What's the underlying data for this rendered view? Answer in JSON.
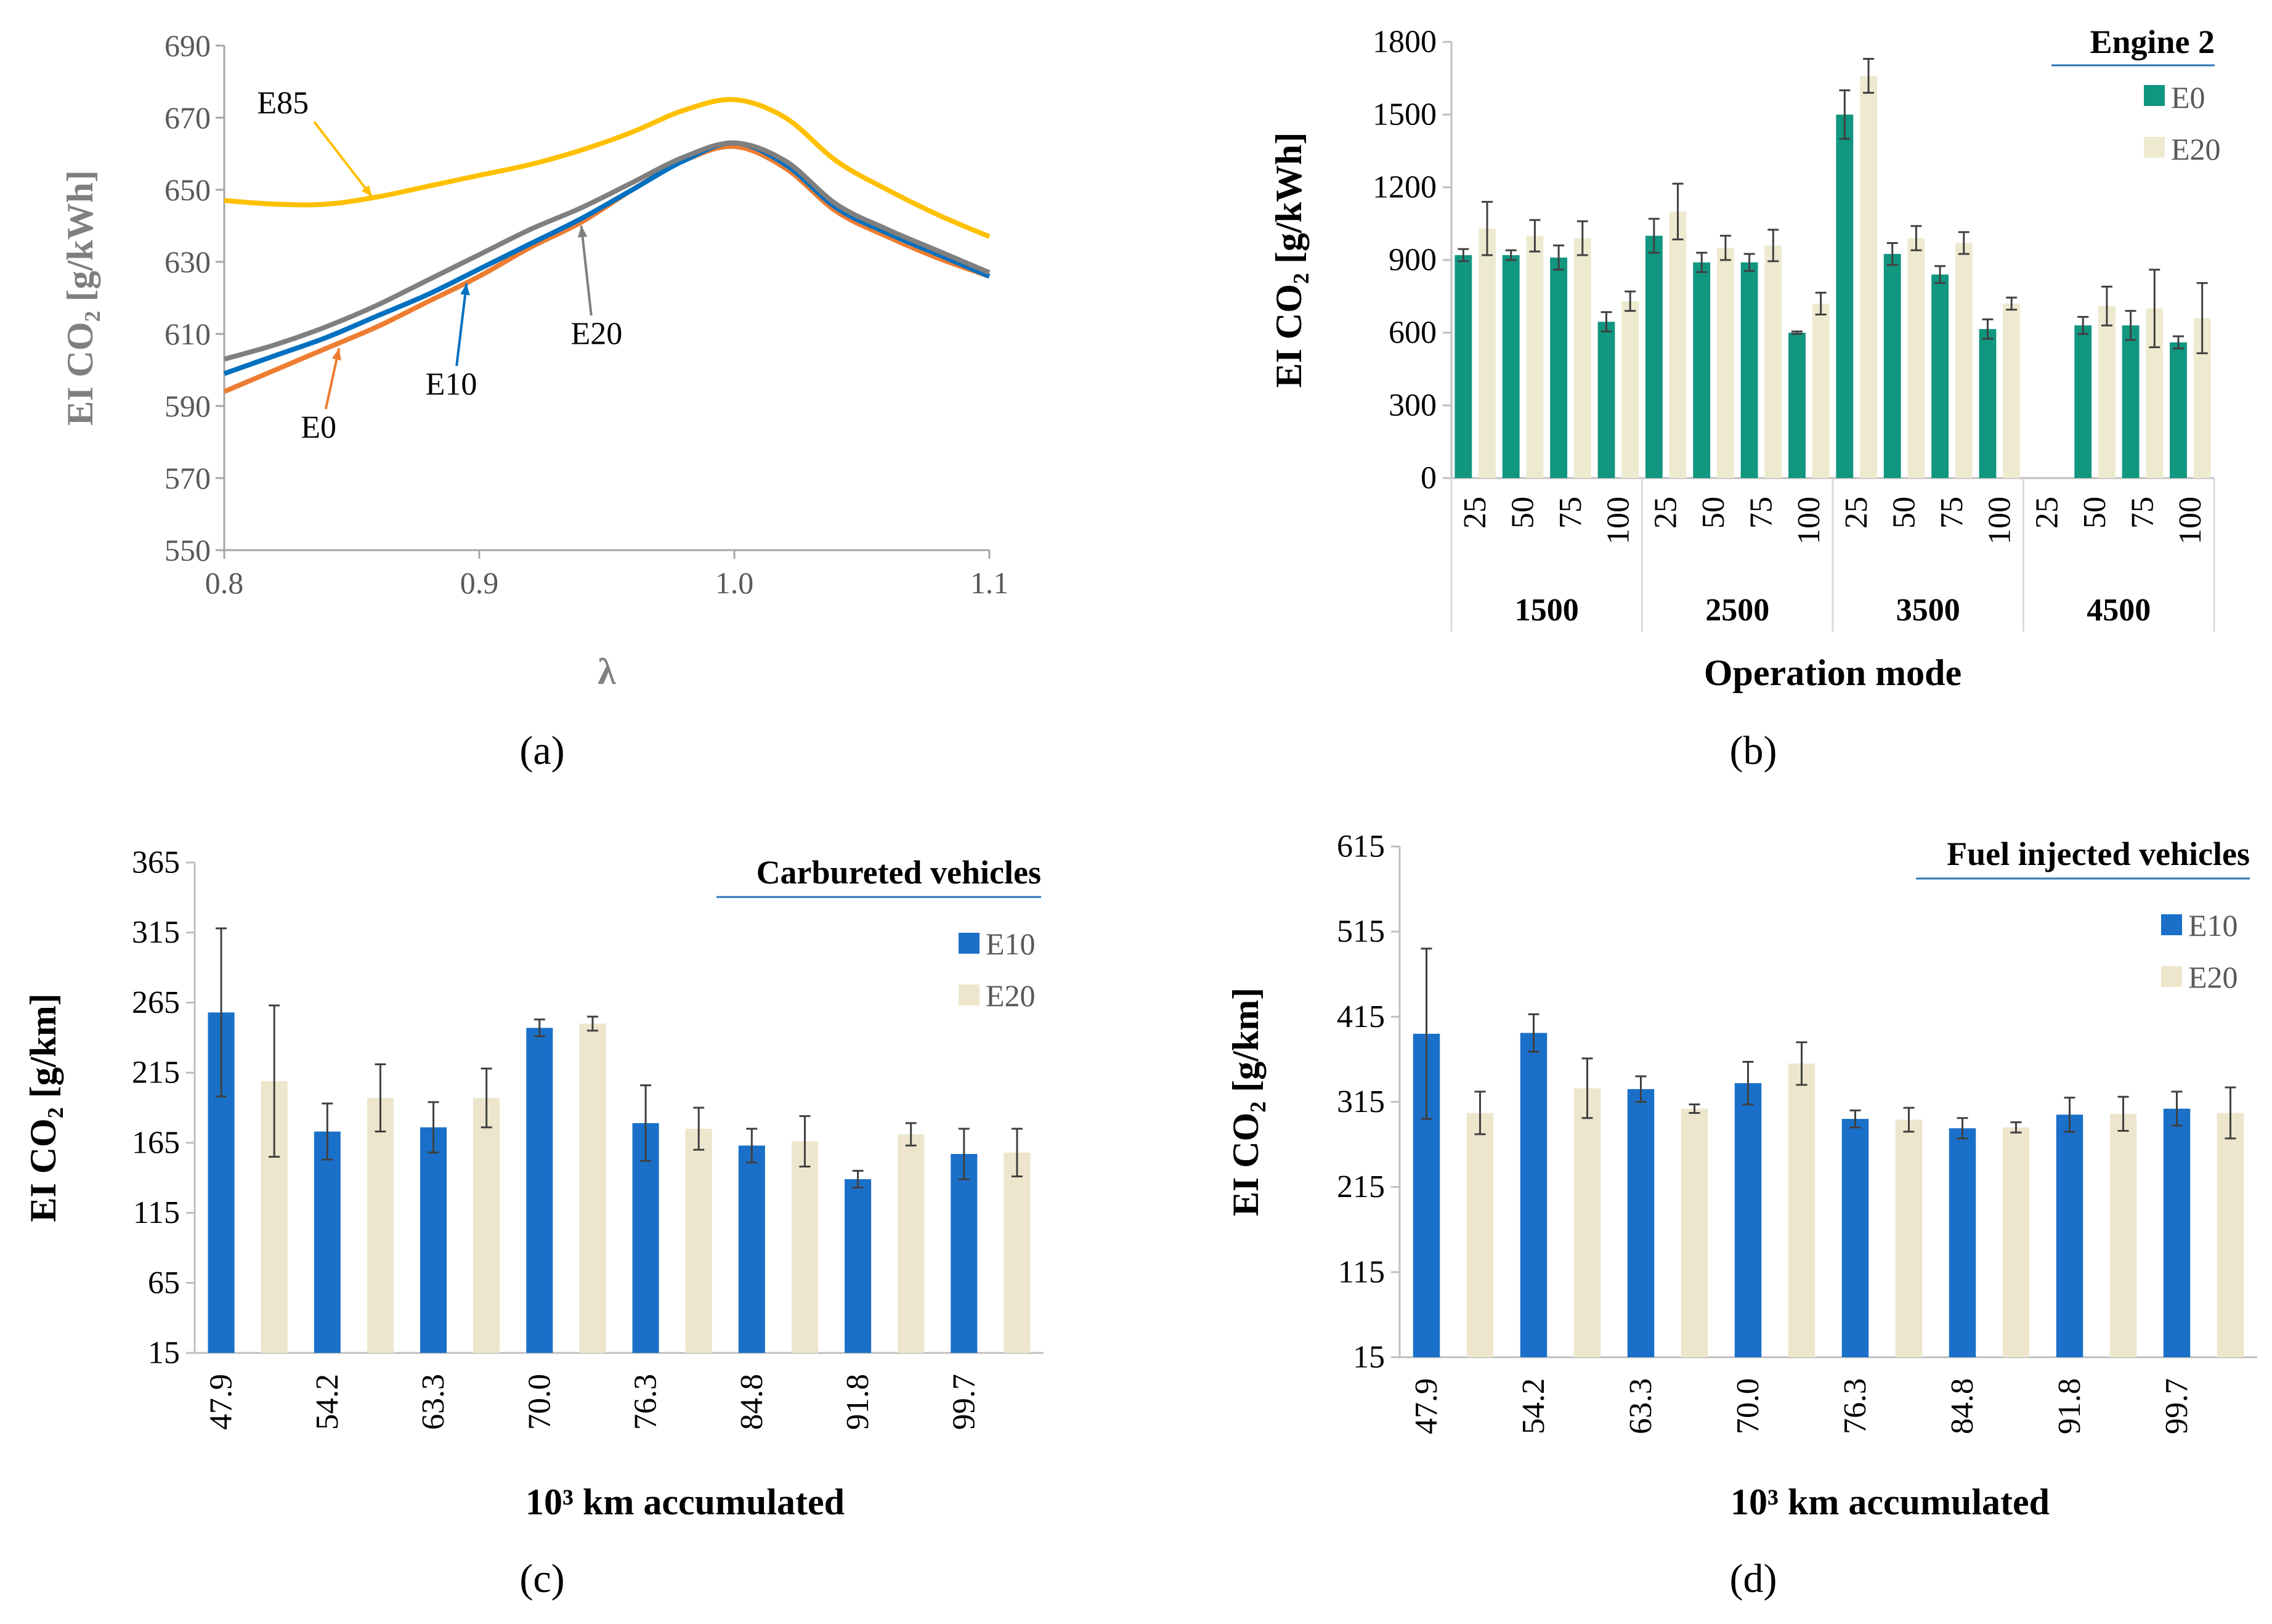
{
  "chart_data": [
    {
      "id": "a",
      "type": "line",
      "caption": "(a)",
      "title": "",
      "xlabel": "λ",
      "ylabel": "EI CO₂ [g/kWh]",
      "xlim": [
        0.8,
        1.1
      ],
      "ylim": [
        550,
        690
      ],
      "x_ticks": [
        "0.8",
        "0.9",
        "1.0",
        "1.1"
      ],
      "y_ticks": [
        "550",
        "570",
        "590",
        "610",
        "630",
        "650",
        "670",
        "690"
      ],
      "x": [
        0.8,
        0.82,
        0.84,
        0.86,
        0.88,
        0.9,
        0.92,
        0.94,
        0.96,
        0.98,
        1.0,
        1.02,
        1.04,
        1.06,
        1.08,
        1.1
      ],
      "series": [
        {
          "name": "E0",
          "label": "E0",
          "color": "#ed7d31",
          "values": [
            594,
            600,
            606,
            612,
            619,
            626,
            634,
            641,
            650,
            658,
            662,
            656,
            644,
            637,
            631,
            626
          ]
        },
        {
          "name": "E10",
          "label": "E10",
          "color": "#0070c0",
          "values": [
            599,
            604,
            609,
            615,
            621,
            628,
            635,
            642,
            650,
            658,
            663,
            657,
            645,
            638,
            632,
            626
          ]
        },
        {
          "name": "E20",
          "label": "E20",
          "color": "#7f7f7f",
          "values": [
            603,
            607,
            612,
            618,
            625,
            632,
            639,
            645,
            652,
            659,
            663,
            658,
            646,
            639,
            633,
            627
          ]
        },
        {
          "name": "E85",
          "label": "E85",
          "color": "#ffc000",
          "values": [
            647,
            646,
            646,
            648,
            651,
            654,
            657,
            661,
            666,
            672,
            675,
            670,
            658,
            650,
            643,
            637
          ]
        }
      ]
    },
    {
      "id": "b",
      "type": "bar",
      "caption": "(b)",
      "title": "Engine 2",
      "xlabel": "Operation mode",
      "ylabel": "EI CO₂ [g/kWh]",
      "ylim": [
        0,
        1800
      ],
      "y_ticks": [
        "0",
        "300",
        "600",
        "900",
        "1200",
        "1500",
        "1800"
      ],
      "groups": [
        "1500",
        "2500",
        "3500",
        "4500"
      ],
      "categories": [
        "25",
        "50",
        "75",
        "100",
        "25",
        "50",
        "75",
        "100",
        "25",
        "50",
        "75",
        "100",
        "25",
        "50",
        "75",
        "100"
      ],
      "series": [
        {
          "name": "E0",
          "color": "#119680",
          "values": [
            920,
            920,
            910,
            645,
            1000,
            890,
            890,
            600,
            1500,
            925,
            840,
            615,
            null,
            630,
            630,
            560
          ],
          "errors": [
            25,
            20,
            50,
            40,
            70,
            40,
            35,
            5,
            100,
            45,
            35,
            40,
            null,
            35,
            60,
            25
          ]
        },
        {
          "name": "E20",
          "color": "#eeead0",
          "values": [
            1030,
            1000,
            990,
            730,
            1100,
            950,
            960,
            720,
            1660,
            990,
            970,
            720,
            null,
            710,
            700,
            660
          ],
          "errors": [
            110,
            65,
            70,
            40,
            115,
            50,
            65,
            45,
            70,
            50,
            45,
            25,
            null,
            80,
            160,
            145
          ]
        }
      ]
    },
    {
      "id": "c",
      "type": "bar",
      "caption": "(c)",
      "title": "Carbureted vehicles",
      "xlabel": "10³ km accumulated",
      "ylabel": "EI CO₂ [g/km]",
      "ylim": [
        15,
        365
      ],
      "y_ticks": [
        "15",
        "65",
        "115",
        "165",
        "215",
        "265",
        "315",
        "365"
      ],
      "categories": [
        "47.9",
        "54.2",
        "63.3",
        "70.0",
        "76.3",
        "84.8",
        "91.8",
        "99.7"
      ],
      "series": [
        {
          "name": "E10",
          "color": "#1a70c8",
          "values": [
            258,
            173,
            176,
            247,
            179,
            163,
            139,
            157
          ],
          "errors": [
            60,
            20,
            18,
            6,
            27,
            12,
            6,
            18
          ]
        },
        {
          "name": "E20",
          "color": "#ede6cc",
          "values": [
            209,
            197,
            197,
            250,
            175,
            166,
            171,
            158
          ],
          "errors": [
            54,
            24,
            21,
            5,
            15,
            18,
            8,
            17
          ]
        }
      ]
    },
    {
      "id": "d",
      "type": "bar",
      "caption": "(d)",
      "title": "Fuel injected vehicles",
      "xlabel": "10³ km accumulated",
      "ylabel": "EI CO₂ [g/km]",
      "ylim": [
        15,
        615
      ],
      "y_ticks": [
        "15",
        "115",
        "215",
        "315",
        "415",
        "515",
        "615"
      ],
      "categories": [
        "47.9",
        "54.2",
        "63.3",
        "70.0",
        "76.3",
        "84.8",
        "91.8",
        "99.7"
      ],
      "series": [
        {
          "name": "E10",
          "color": "#1a70c8",
          "values": [
            395,
            396,
            330,
            337,
            295,
            284,
            300,
            307
          ],
          "errors": [
            100,
            22,
            15,
            25,
            10,
            12,
            20,
            20
          ]
        },
        {
          "name": "E20",
          "color": "#ede6cc",
          "values": [
            302,
            331,
            307,
            360,
            294,
            285,
            301,
            302
          ],
          "errors": [
            25,
            35,
            5,
            25,
            14,
            6,
            20,
            30
          ]
        }
      ]
    }
  ]
}
